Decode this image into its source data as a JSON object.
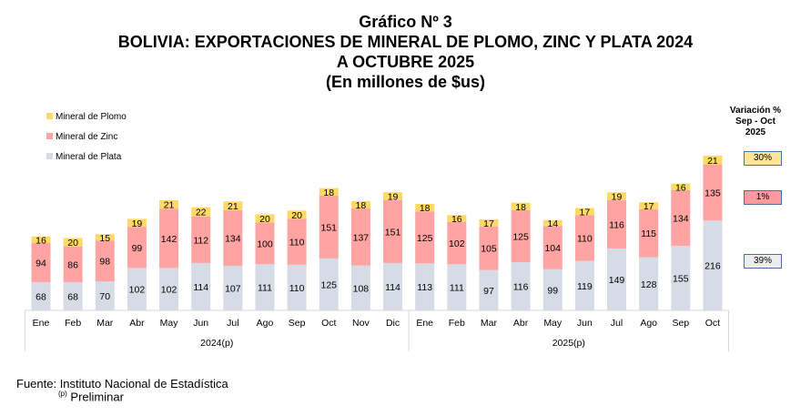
{
  "title": {
    "line1": "Gráfico Nº 3",
    "line2": "BOLIVIA: EXPORTACIONES DE MINERAL DE PLOMO, ZINC Y PLATA 2024",
    "line3": "A OCTUBRE 2025",
    "line4": "(En millones de $us)"
  },
  "variation": {
    "header": [
      "Variación %",
      "Sep - Oct",
      "2025"
    ],
    "plomo": "30%",
    "zinc": "1%",
    "plata": "39%"
  },
  "footer": {
    "source": "Fuente: Instituto Nacional de Estadística",
    "note_sup": "(p)",
    "note": "Preliminar"
  },
  "colors": {
    "plomo": "#FFD966",
    "zinc": "#FFA3A3",
    "plata": "#D6DCE5",
    "plomo_box": "#FFE699",
    "zinc_box": "#FF9B9B",
    "plata_box": "#EDEDED"
  },
  "chart_data": {
    "type": "bar",
    "stacked": true,
    "title": "BOLIVIA: EXPORTACIONES DE MINERAL DE PLOMO, ZINC Y PLATA 2024 A OCTUBRE 2025",
    "ylabel": "En millones de $us",
    "legend_position": "top-left",
    "groups": [
      {
        "label": "2024(p)",
        "count": 12
      },
      {
        "label": "2025(p)",
        "count": 10
      }
    ],
    "categories": [
      "Ene",
      "Feb",
      "Mar",
      "Abr",
      "May",
      "Jun",
      "Jul",
      "Ago",
      "Sep",
      "Oct",
      "Nov",
      "Dic",
      "Ene",
      "Feb",
      "Mar",
      "Abr",
      "May",
      "Jun",
      "Jul",
      "Ago",
      "Sep",
      "Oct"
    ],
    "series": [
      {
        "name": "Mineral de Plata",
        "key": "plata",
        "values": [
          68,
          68,
          70,
          102,
          102,
          114,
          107,
          111,
          110,
          125,
          108,
          114,
          113,
          111,
          97,
          116,
          99,
          119,
          149,
          128,
          155,
          216
        ]
      },
      {
        "name": "Mineral de Zinc",
        "key": "zinc",
        "values": [
          94,
          86,
          98,
          99,
          142,
          112,
          134,
          100,
          110,
          151,
          137,
          151,
          125,
          102,
          105,
          125,
          104,
          110,
          116,
          115,
          134,
          135
        ]
      },
      {
        "name": "Mineral de Plomo",
        "key": "plomo",
        "values": [
          16,
          20,
          15,
          19,
          21,
          22,
          21,
          20,
          20,
          18,
          18,
          19,
          18,
          16,
          17,
          18,
          14,
          17,
          19,
          17,
          16,
          21
        ]
      }
    ],
    "legend": [
      "Mineral de Plomo",
      "Mineral de Zinc",
      "Mineral de Plata"
    ],
    "ylim": [
      0,
      380
    ]
  }
}
